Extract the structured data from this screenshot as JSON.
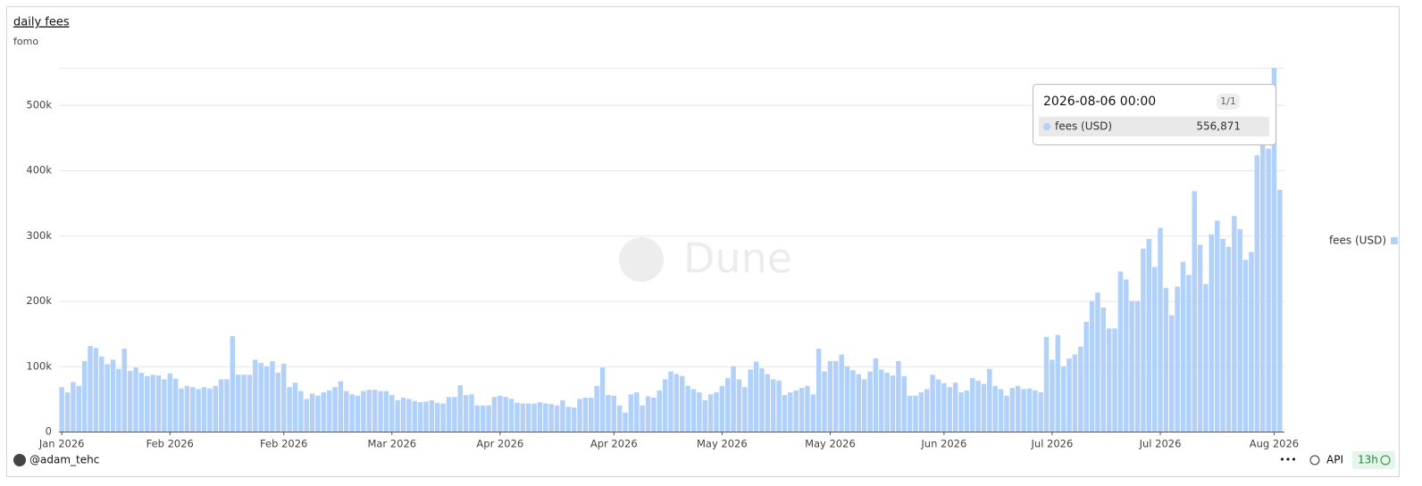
{
  "chart_data": {
    "type": "bar",
    "title": "daily fees",
    "subtitle": "fomo",
    "watermark": "Dune",
    "x": [
      "2026-01-05",
      "2026-01-06",
      "2026-01-07",
      "2026-01-08",
      "2026-01-09",
      "2026-01-10",
      "2026-01-11",
      "2026-01-12",
      "2026-01-13",
      "2026-01-14",
      "2026-01-15",
      "2026-01-16",
      "2026-01-17",
      "2026-01-18",
      "2026-01-19",
      "2026-01-20",
      "2026-01-21",
      "2026-01-22",
      "2026-01-23",
      "2026-01-24",
      "2026-01-25",
      "2026-01-26",
      "2026-01-27",
      "2026-01-28",
      "2026-01-29",
      "2026-01-30",
      "2026-01-31",
      "2026-02-01",
      "2026-02-02",
      "2026-02-03",
      "2026-02-04",
      "2026-02-05",
      "2026-02-06",
      "2026-02-07",
      "2026-02-08",
      "2026-02-09",
      "2026-02-10",
      "2026-02-11",
      "2026-02-12",
      "2026-02-13",
      "2026-02-14",
      "2026-02-15",
      "2026-02-16",
      "2026-02-17",
      "2026-02-18",
      "2026-02-19",
      "2026-02-20",
      "2026-02-21",
      "2026-02-22",
      "2026-02-23",
      "2026-02-24",
      "2026-02-25",
      "2026-02-26",
      "2026-02-27",
      "2026-02-28",
      "2026-03-01",
      "2026-03-02",
      "2026-03-03",
      "2026-03-04",
      "2026-03-05",
      "2026-03-06",
      "2026-03-07",
      "2026-03-08",
      "2026-03-09",
      "2026-03-10",
      "2026-03-11",
      "2026-03-12",
      "2026-03-13",
      "2026-03-14",
      "2026-03-15",
      "2026-03-16",
      "2026-03-17",
      "2026-03-18",
      "2026-03-19",
      "2026-03-20",
      "2026-03-21",
      "2026-03-22",
      "2026-03-23",
      "2026-03-24",
      "2026-03-25",
      "2026-03-26",
      "2026-03-27",
      "2026-03-28",
      "2026-03-29",
      "2026-03-30",
      "2026-03-31",
      "2026-04-01",
      "2026-04-02",
      "2026-04-03",
      "2026-04-04",
      "2026-04-05",
      "2026-04-06",
      "2026-04-07",
      "2026-04-08",
      "2026-04-09",
      "2026-04-10",
      "2026-04-11",
      "2026-04-12",
      "2026-04-13",
      "2026-04-14",
      "2026-04-15",
      "2026-04-16",
      "2026-04-17",
      "2026-04-18",
      "2026-04-19",
      "2026-04-20",
      "2026-04-21",
      "2026-04-22",
      "2026-04-23",
      "2026-04-24",
      "2026-04-25",
      "2026-04-26",
      "2026-04-27",
      "2026-04-28",
      "2026-04-29",
      "2026-04-30",
      "2026-05-01",
      "2026-05-02",
      "2026-05-03",
      "2026-05-04",
      "2026-05-05",
      "2026-05-06",
      "2026-05-07",
      "2026-05-08",
      "2026-05-09",
      "2026-05-10",
      "2026-05-11",
      "2026-05-12",
      "2026-05-13",
      "2026-05-14",
      "2026-05-15",
      "2026-05-16",
      "2026-05-17",
      "2026-05-18",
      "2026-05-19",
      "2026-05-20",
      "2026-05-21",
      "2026-05-22",
      "2026-05-23",
      "2026-05-24",
      "2026-05-25",
      "2026-05-26",
      "2026-05-27",
      "2026-05-28",
      "2026-05-29",
      "2026-05-30",
      "2026-05-31",
      "2026-06-01",
      "2026-06-02",
      "2026-06-03",
      "2026-06-04",
      "2026-06-05",
      "2026-06-06",
      "2026-06-07",
      "2026-06-08",
      "2026-06-09",
      "2026-06-10",
      "2026-06-11",
      "2026-06-12",
      "2026-06-13",
      "2026-06-14",
      "2026-06-15",
      "2026-06-16",
      "2026-06-17",
      "2026-06-18",
      "2026-06-19",
      "2026-06-20",
      "2026-06-21",
      "2026-06-22",
      "2026-06-23",
      "2026-06-24",
      "2026-06-25",
      "2026-06-26",
      "2026-06-27",
      "2026-06-28",
      "2026-06-29",
      "2026-06-30",
      "2026-07-01",
      "2026-07-02",
      "2026-07-03",
      "2026-07-04",
      "2026-07-05",
      "2026-07-06",
      "2026-07-07",
      "2026-07-08",
      "2026-07-09",
      "2026-07-10",
      "2026-07-11",
      "2026-07-12",
      "2026-07-13",
      "2026-07-14",
      "2026-07-15",
      "2026-07-16",
      "2026-07-17",
      "2026-07-18",
      "2026-07-19",
      "2026-07-20",
      "2026-07-21",
      "2026-07-22",
      "2026-07-23",
      "2026-07-24",
      "2026-07-25",
      "2026-07-26",
      "2026-07-27",
      "2026-07-28",
      "2026-07-29",
      "2026-07-30",
      "2026-07-31",
      "2026-08-01",
      "2026-08-02",
      "2026-08-03",
      "2026-08-04",
      "2026-08-05",
      "2026-08-06",
      "2026-08-07"
    ],
    "series": [
      {
        "name": "fees (USD)",
        "color": "#b1d0fa",
        "values": [
          68000,
          60000,
          76000,
          70000,
          108000,
          131000,
          128000,
          115000,
          103000,
          110000,
          96000,
          127000,
          93000,
          98000,
          90000,
          85000,
          87000,
          86000,
          80000,
          89000,
          81000,
          66000,
          70000,
          68000,
          65000,
          68000,
          66000,
          70000,
          80000,
          80000,
          146000,
          87000,
          87000,
          87000,
          110000,
          105000,
          100000,
          108000,
          90000,
          104000,
          68000,
          75000,
          62000,
          50000,
          58000,
          55000,
          60000,
          63000,
          68000,
          77000,
          62000,
          57000,
          55000,
          62000,
          64000,
          64000,
          62000,
          62000,
          56000,
          48000,
          52000,
          50000,
          47000,
          45000,
          46000,
          48000,
          44000,
          43000,
          53000,
          53000,
          71000,
          56000,
          57000,
          40000,
          40000,
          40000,
          53000,
          55000,
          53000,
          50000,
          44000,
          43000,
          43000,
          43000,
          45000,
          43000,
          42000,
          40000,
          48000,
          38000,
          37000,
          50000,
          52000,
          52000,
          70000,
          98000,
          56000,
          55000,
          40000,
          29000,
          57000,
          60000,
          40000,
          54000,
          52000,
          63000,
          80000,
          92000,
          88000,
          85000,
          70000,
          65000,
          60000,
          48000,
          57000,
          60000,
          70000,
          82000,
          100000,
          80000,
          68000,
          95000,
          107000,
          97000,
          88000,
          80000,
          78000,
          56000,
          60000,
          63000,
          67000,
          70000,
          57000,
          127000,
          92000,
          108000,
          108000,
          118000,
          100000,
          94000,
          88000,
          80000,
          92000,
          112000,
          95000,
          90000,
          86000,
          108000,
          85000,
          55000,
          55000,
          60000,
          65000,
          87000,
          80000,
          74000,
          68000,
          75000,
          60000,
          63000,
          82000,
          78000,
          73000,
          96000,
          70000,
          65000,
          55000,
          67000,
          70000,
          65000,
          66000,
          63000,
          60000,
          145000,
          110000,
          148000,
          100000,
          112000,
          118000,
          130000,
          168000,
          200000,
          213000,
          190000,
          158000,
          158000,
          245000,
          233000,
          200000,
          200000,
          280000,
          295000,
          252000,
          312000,
          220000,
          178000,
          222000,
          260000,
          240000,
          368000,
          286000,
          226000,
          302000,
          323000,
          295000,
          283000,
          330000,
          310000,
          263000,
          275000,
          423000,
          460000,
          433000,
          556871,
          370000
        ]
      }
    ],
    "ylim": [
      0,
      557000
    ],
    "yticks": [
      0,
      {
        "value": 100000,
        "label": "100k"
      },
      {
        "value": 200000,
        "label": "200k"
      },
      {
        "value": 300000,
        "label": "300k"
      },
      {
        "value": 400000,
        "label": "400k"
      },
      {
        "value": 500000,
        "label": "500k"
      }
    ],
    "xticks": [
      {
        "value": "2026-01-05",
        "label": "Jan 2026"
      },
      {
        "value": "2026-01-24",
        "label": "Feb 2026"
      },
      {
        "value": "2026-02-13",
        "label": "Feb 2026"
      },
      {
        "value": "2026-03-04",
        "label": "Mar 2026"
      },
      {
        "value": "2026-03-23",
        "label": "Apr 2026"
      },
      {
        "value": "2026-04-12",
        "label": "Apr 2026"
      },
      {
        "value": "2026-05-01",
        "label": "May 2026"
      },
      {
        "value": "2026-05-20",
        "label": "May 2026"
      },
      {
        "value": "2026-06-09",
        "label": "Jun 2026"
      },
      {
        "value": "2026-06-28",
        "label": "Jul 2026"
      },
      {
        "value": "2026-07-17",
        "label": "Jul 2026"
      },
      {
        "value": "2026-08-06",
        "label": "Aug 2026"
      }
    ],
    "grid": true,
    "legend": "right",
    "tooltip": {
      "title": "2026-08-06 00:00",
      "counter": "1/1",
      "value_label": "556,871"
    }
  },
  "footer": {
    "author": "@adam_tehc",
    "menu": "•••",
    "api": "API",
    "age": "13h"
  }
}
